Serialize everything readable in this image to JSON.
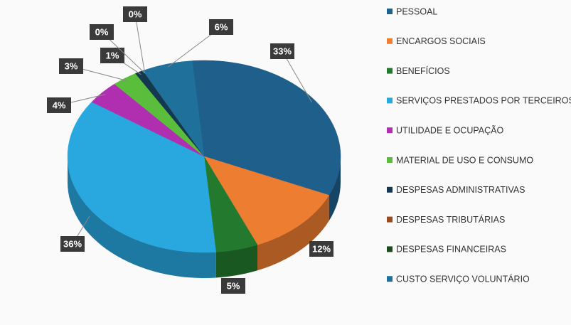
{
  "chart_data": {
    "type": "pie",
    "categories": [
      "PESSOAL",
      "ENCARGOS SOCIAIS",
      "BENEFÍCIOS",
      "SERVIÇOS PRESTADOS POR TERCEIROS",
      "UTILIDADE E OCUPAÇÃO",
      "MATERIAL DE USO E CONSUMO",
      "DESPESAS ADMINISTRATIVAS",
      "DESPESAS TRIBUTÁRIAS",
      "DESPESAS FINANCEIRAS",
      "CUSTO SERVIÇO VOLUNTÁRIO"
    ],
    "values": [
      33,
      12,
      5,
      36,
      4,
      3,
      1,
      0,
      0,
      6
    ],
    "value_labels": [
      "33%",
      "12%",
      "5%",
      "36%",
      "4%",
      "3%",
      "1%",
      "0%",
      "0%",
      "6%"
    ],
    "colors": [
      "#1f5f8b",
      "#ed7d31",
      "#237a2f",
      "#29a8e0",
      "#b02fb0",
      "#5bbd3c",
      "#14384f",
      "#9b4a1c",
      "#1b4d1b",
      "#20709c"
    ],
    "legend": "right"
  }
}
